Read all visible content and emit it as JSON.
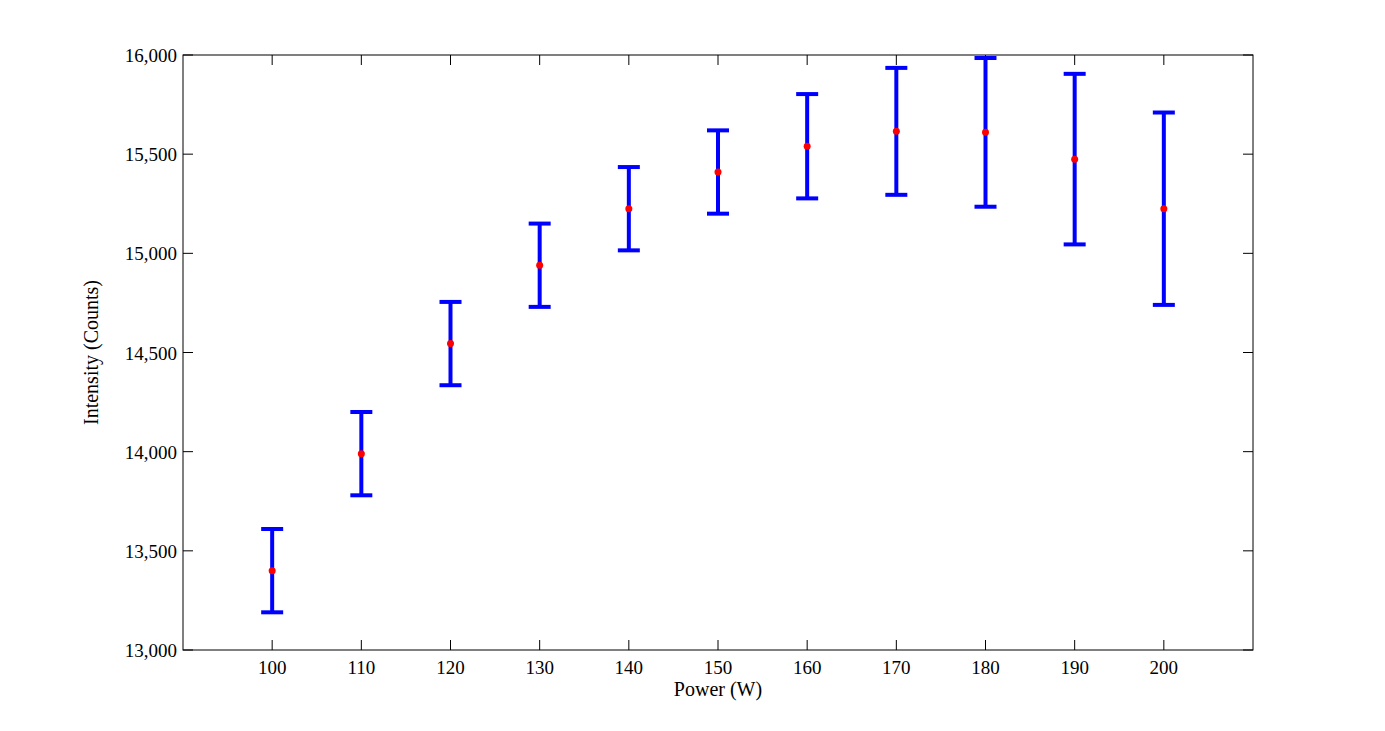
{
  "chart_data": {
    "type": "errorbar",
    "x_label": "Power (W)",
    "y_label": "Intensity (Counts)",
    "x": [
      100,
      110,
      120,
      130,
      140,
      150,
      160,
      170,
      180,
      190,
      200
    ],
    "values": [
      13400,
      13990,
      14545,
      14940,
      15225,
      15410,
      15540,
      15615,
      15610,
      15475,
      15225
    ],
    "errors": [
      210,
      210,
      210,
      210,
      210,
      210,
      263,
      320,
      375,
      430,
      485
    ],
    "color": "#ff0000",
    "error_color": "#0000ff",
    "marker": "dot",
    "xlim": [
      90,
      210
    ],
    "xticks": [
      100,
      110,
      120,
      130,
      140,
      150,
      160,
      170,
      180,
      190,
      200
    ],
    "ylim": [
      13000,
      16000
    ],
    "yticks": [
      {
        "value": 13000,
        "label": "13,000"
      },
      {
        "value": 13500,
        "label": "13,500"
      },
      {
        "value": 14000,
        "label": "14,000"
      },
      {
        "value": 14500,
        "label": "14,500"
      },
      {
        "value": 15000,
        "label": "15,000"
      },
      {
        "value": 15500,
        "label": "15,500"
      },
      {
        "value": 16000,
        "label": "16,000"
      }
    ],
    "grid": false
  }
}
